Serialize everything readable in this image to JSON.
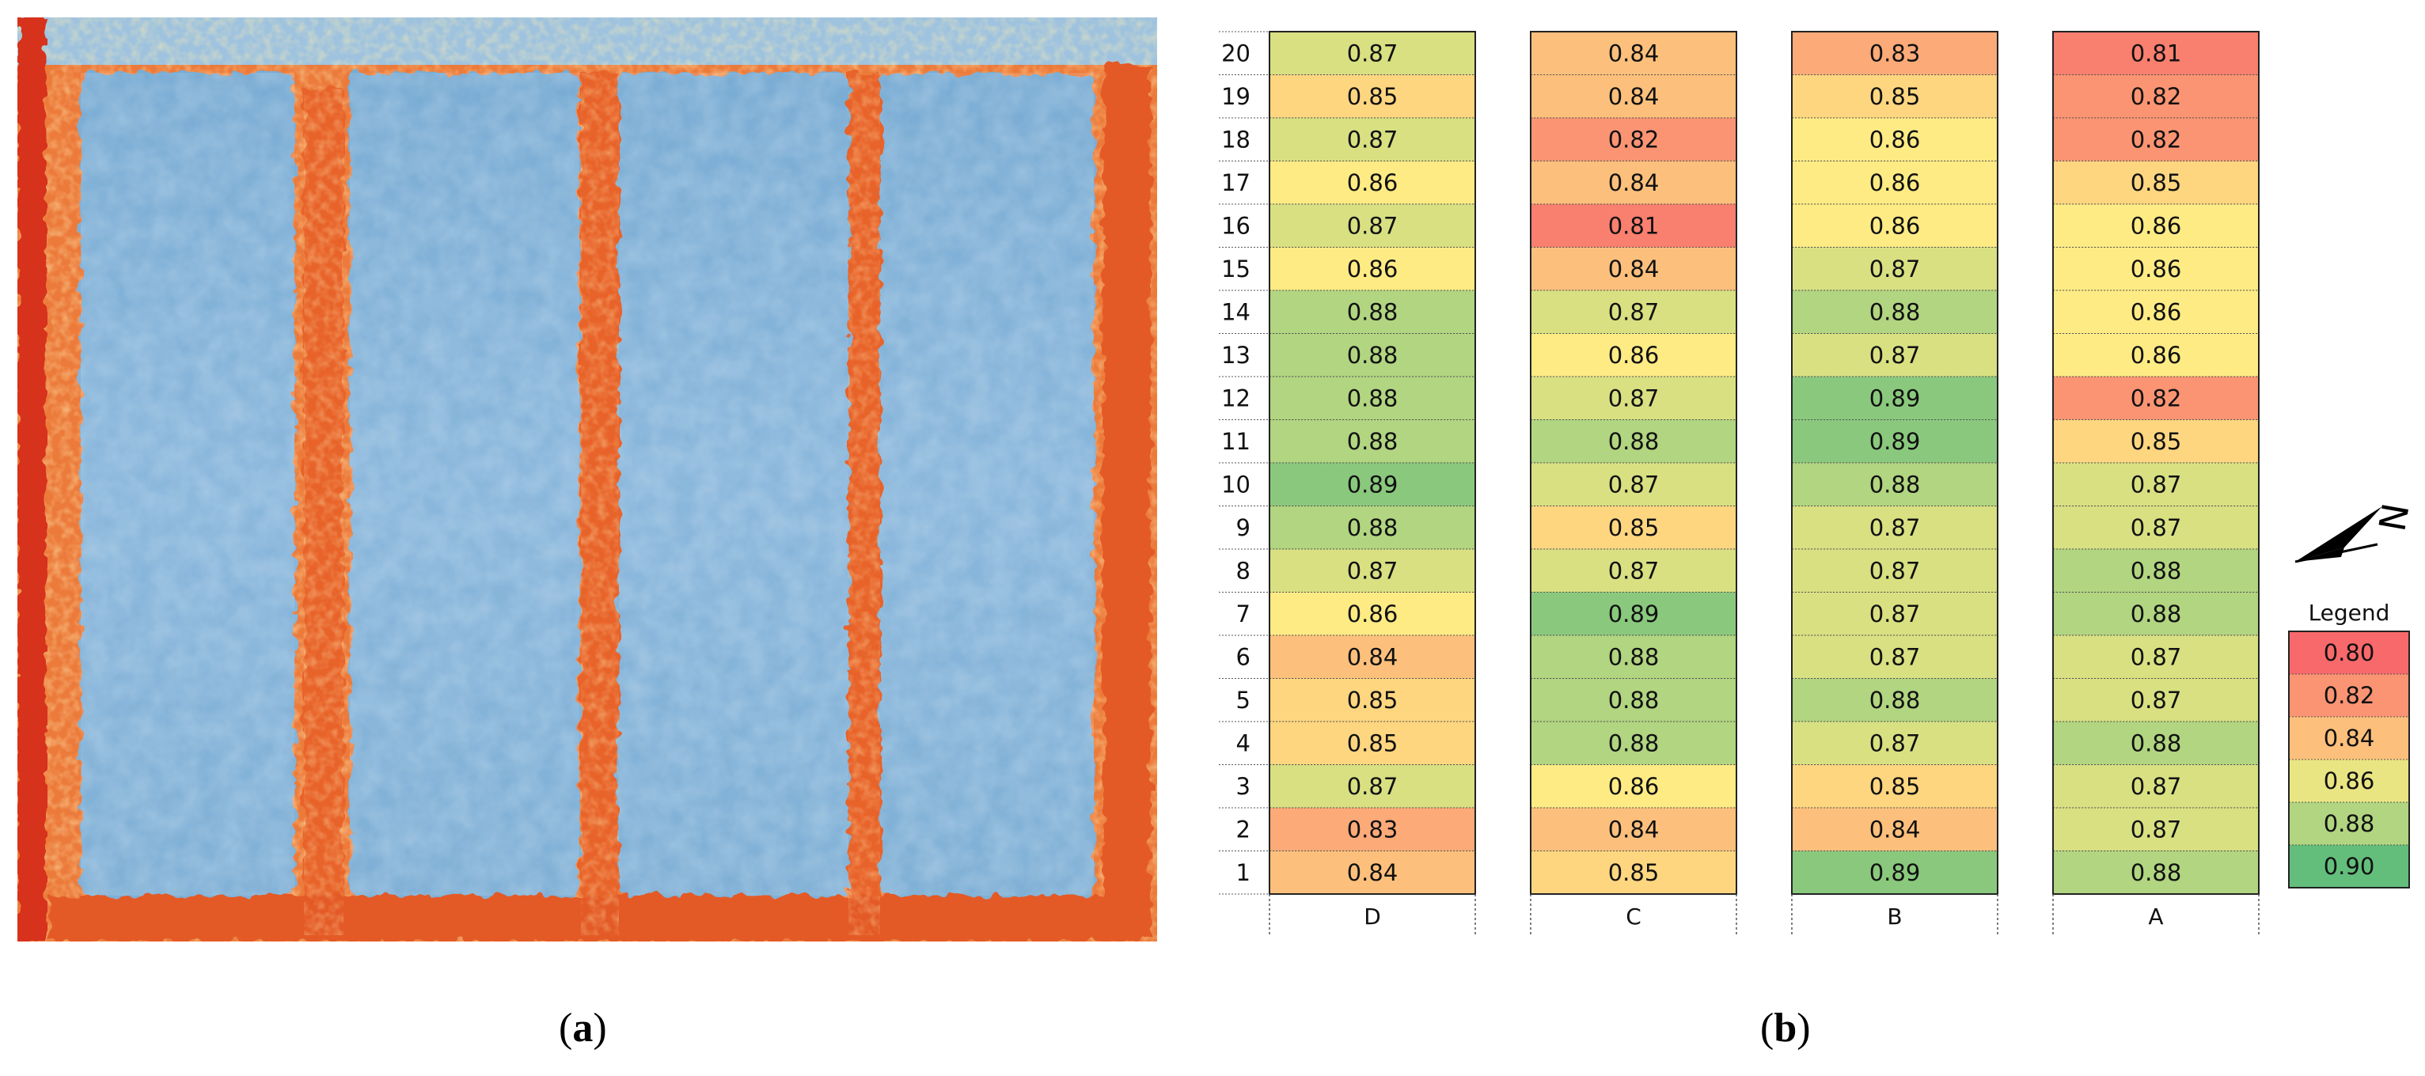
{
  "panels": {
    "a_label": "a",
    "b_label": "b",
    "paren_open": "(",
    "paren_close": ")"
  },
  "map_image": {
    "description_icon": "ndvi-heatmap-image",
    "colors": {
      "low": "#d7301f",
      "mid_low": "#f4a259",
      "mid": "#ffe79a",
      "high": "#9cc3e0",
      "highest": "#6aa3d0"
    }
  },
  "chart_data": {
    "type": "heatmap",
    "columns": [
      "D",
      "C",
      "B",
      "A"
    ],
    "rows": [
      20,
      19,
      18,
      17,
      16,
      15,
      14,
      13,
      12,
      11,
      10,
      9,
      8,
      7,
      6,
      5,
      4,
      3,
      2,
      1
    ],
    "values": {
      "D": [
        0.87,
        0.85,
        0.87,
        0.86,
        0.87,
        0.86,
        0.88,
        0.88,
        0.88,
        0.88,
        0.89,
        0.88,
        0.87,
        0.86,
        0.84,
        0.85,
        0.85,
        0.87,
        0.83,
        0.84
      ],
      "C": [
        0.84,
        0.84,
        0.82,
        0.84,
        0.81,
        0.84,
        0.87,
        0.86,
        0.87,
        0.88,
        0.87,
        0.85,
        0.87,
        0.89,
        0.88,
        0.88,
        0.88,
        0.86,
        0.84,
        0.85
      ],
      "B": [
        0.83,
        0.85,
        0.86,
        0.86,
        0.86,
        0.87,
        0.88,
        0.87,
        0.89,
        0.89,
        0.88,
        0.87,
        0.87,
        0.87,
        0.87,
        0.88,
        0.87,
        0.85,
        0.84,
        0.89
      ],
      "A": [
        0.81,
        0.82,
        0.82,
        0.85,
        0.86,
        0.86,
        0.86,
        0.86,
        0.82,
        0.85,
        0.87,
        0.87,
        0.88,
        0.88,
        0.87,
        0.87,
        0.88,
        0.87,
        0.87,
        0.88
      ]
    },
    "legend": {
      "title": "Legend",
      "entries": [
        "0.80",
        "0.82",
        "0.84",
        "0.86",
        "0.88",
        "0.90"
      ],
      "colors": [
        "#f8696b",
        "#fa9473",
        "#fdc07c",
        "#e9e583",
        "#b1d580",
        "#63be7b"
      ]
    },
    "color_scale": {
      "min": 0.8,
      "max": 0.9,
      "stops": [
        {
          "v": 0.8,
          "color": "#f8696b"
        },
        {
          "v": 0.84,
          "color": "#fdc07c"
        },
        {
          "v": 0.86,
          "color": "#ffeb84"
        },
        {
          "v": 0.9,
          "color": "#63be7b"
        }
      ]
    },
    "north_arrow": {
      "label": "N",
      "icon": "north-arrow-icon"
    }
  }
}
